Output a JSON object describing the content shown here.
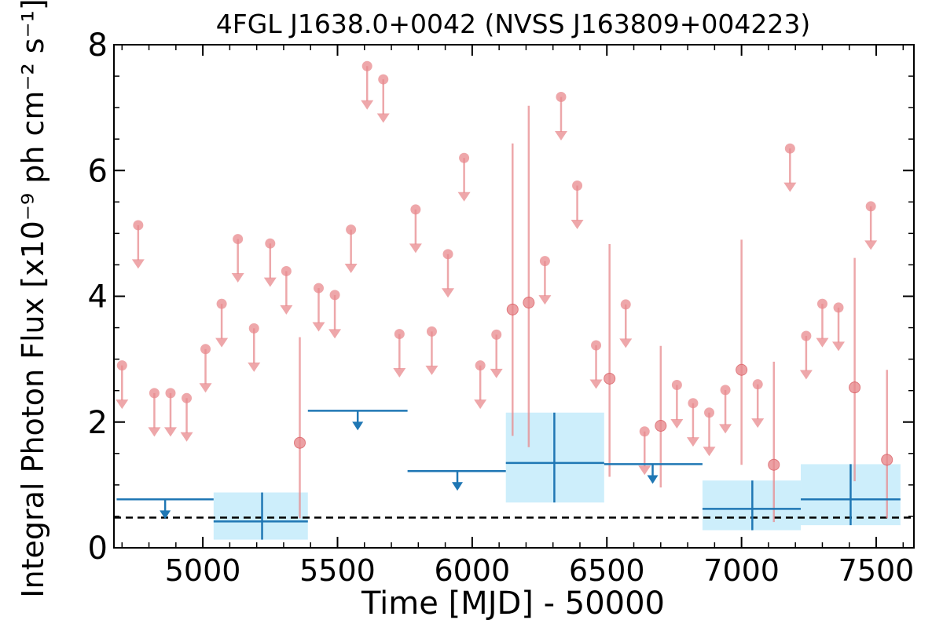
{
  "chart_data": {
    "type": "scatter",
    "title": "4FGL J1638.0+0042 (NVSS J163809+004223)",
    "xlabel": "Time [MJD] - 50000",
    "ylabel": "Integral Photon Flux [x10⁻⁹ ph cm⁻² s⁻¹]",
    "xlim": [
      4670,
      7640
    ],
    "ylim": [
      0,
      8
    ],
    "x_ticks": [
      5000,
      5500,
      6000,
      6500,
      7000,
      7500
    ],
    "y_ticks": [
      0,
      2,
      4,
      6,
      8
    ],
    "grid": false,
    "baseline": 0.48,
    "colors": {
      "short_bin": "#e88a8e",
      "long_bin": "#1f77b4",
      "long_bin_band": "#cdeefb",
      "baseline": "#000000"
    },
    "short_bin_upper_limits": [
      {
        "x": 4700,
        "y": 2.9
      },
      {
        "x": 4760,
        "y": 5.13
      },
      {
        "x": 4820,
        "y": 2.46
      },
      {
        "x": 4880,
        "y": 2.46
      },
      {
        "x": 4940,
        "y": 2.38
      },
      {
        "x": 5010,
        "y": 3.16
      },
      {
        "x": 5070,
        "y": 3.88
      },
      {
        "x": 5130,
        "y": 4.91
      },
      {
        "x": 5190,
        "y": 3.49
      },
      {
        "x": 5250,
        "y": 4.84
      },
      {
        "x": 5310,
        "y": 4.4
      },
      {
        "x": 5430,
        "y": 4.13
      },
      {
        "x": 5490,
        "y": 4.02
      },
      {
        "x": 5550,
        "y": 5.06
      },
      {
        "x": 5610,
        "y": 7.66
      },
      {
        "x": 5670,
        "y": 7.45
      },
      {
        "x": 5730,
        "y": 3.4
      },
      {
        "x": 5790,
        "y": 5.38
      },
      {
        "x": 5850,
        "y": 3.44
      },
      {
        "x": 5910,
        "y": 4.67
      },
      {
        "x": 5970,
        "y": 6.2
      },
      {
        "x": 6030,
        "y": 2.9
      },
      {
        "x": 6090,
        "y": 3.39
      },
      {
        "x": 6270,
        "y": 4.56
      },
      {
        "x": 6330,
        "y": 7.17
      },
      {
        "x": 6390,
        "y": 5.76
      },
      {
        "x": 6460,
        "y": 3.22
      },
      {
        "x": 6570,
        "y": 3.87
      },
      {
        "x": 6640,
        "y": 1.85
      },
      {
        "x": 6760,
        "y": 2.59
      },
      {
        "x": 6820,
        "y": 2.3
      },
      {
        "x": 6880,
        "y": 2.15
      },
      {
        "x": 6940,
        "y": 2.51
      },
      {
        "x": 7060,
        "y": 2.6
      },
      {
        "x": 7180,
        "y": 6.35
      },
      {
        "x": 7240,
        "y": 3.37
      },
      {
        "x": 7300,
        "y": 3.88
      },
      {
        "x": 7360,
        "y": 3.82
      },
      {
        "x": 7480,
        "y": 5.43
      }
    ],
    "short_bin_detections": [
      {
        "x": 5360,
        "y": 1.67,
        "ylo": 0.47,
        "yhi": 3.35
      },
      {
        "x": 6150,
        "y": 3.79,
        "ylo": 1.78,
        "yhi": 6.43
      },
      {
        "x": 6210,
        "y": 3.9,
        "ylo": 1.6,
        "yhi": 7.03
      },
      {
        "x": 6510,
        "y": 2.69,
        "ylo": 1.13,
        "yhi": 4.83
      },
      {
        "x": 6700,
        "y": 1.94,
        "ylo": 0.96,
        "yhi": 3.21
      },
      {
        "x": 7000,
        "y": 2.83,
        "ylo": 1.32,
        "yhi": 4.9
      },
      {
        "x": 7120,
        "y": 1.32,
        "ylo": 0.41,
        "yhi": 2.96
      },
      {
        "x": 7420,
        "y": 2.55,
        "ylo": 1.06,
        "yhi": 4.61
      },
      {
        "x": 7540,
        "y": 1.4,
        "ylo": 0.47,
        "yhi": 2.83
      }
    ],
    "long_bin_upper_limits": [
      {
        "x0": 4680,
        "x1": 5040,
        "x": 4860,
        "y": 0.77
      },
      {
        "x0": 5390,
        "x1": 5760,
        "x": 5575,
        "y": 2.18
      },
      {
        "x0": 5760,
        "x1": 6125,
        "x": 5945,
        "y": 1.22
      },
      {
        "x0": 6490,
        "x1": 6855,
        "x": 6670,
        "y": 1.33
      }
    ],
    "long_bin_detections": [
      {
        "x0": 5040,
        "x1": 5390,
        "x": 5220,
        "y": 0.42,
        "ylo": 0.13,
        "yhi": 0.88
      },
      {
        "x0": 6125,
        "x1": 6490,
        "x": 6305,
        "y": 1.35,
        "ylo": 0.72,
        "yhi": 2.15
      },
      {
        "x0": 6855,
        "x1": 7220,
        "x": 7040,
        "y": 0.62,
        "ylo": 0.28,
        "yhi": 1.07
      },
      {
        "x0": 7220,
        "x1": 7590,
        "x": 7405,
        "y": 0.77,
        "ylo": 0.36,
        "yhi": 1.33
      }
    ]
  }
}
